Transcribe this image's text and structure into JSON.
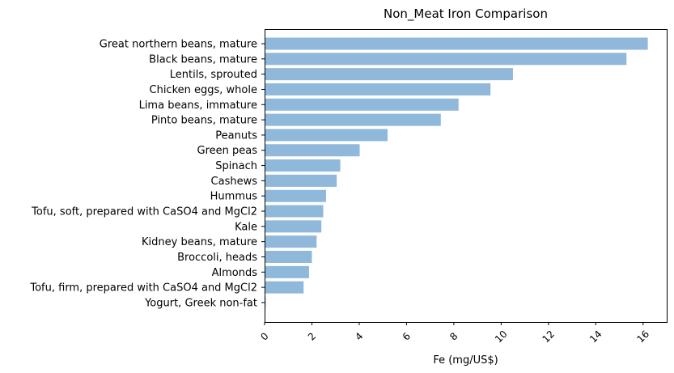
{
  "chart_data": {
    "type": "bar",
    "orientation": "horizontal",
    "title": "Non_Meat Iron Comparison",
    "xlabel": "Fe (mg/US$)",
    "ylabel": "",
    "xlim": [
      0,
      17
    ],
    "xticks": [
      0,
      2,
      4,
      6,
      8,
      10,
      12,
      14,
      16
    ],
    "xtick_labels": [
      "0",
      "2",
      "4",
      "6",
      "8",
      "10",
      "12",
      "14",
      "16"
    ],
    "grid": false,
    "bar_color": "#8fb8da",
    "categories": [
      "Great northern beans, mature",
      "Black beans, mature",
      "Lentils, sprouted",
      "Chicken eggs, whole",
      "Lima beans, immature",
      "Pinto beans, mature",
      "Peanuts",
      "Green peas",
      "Spinach",
      "Cashews",
      "Hummus",
      "Tofu, soft, prepared with CaSO4 and MgCl2",
      "Kale",
      "Kidney beans, mature",
      "Broccoli, heads",
      "Almonds",
      "Tofu, firm, prepared with CaSO4 and MgCl2",
      "Yogurt, Greek non-fat"
    ],
    "values": [
      16.2,
      15.3,
      10.5,
      9.55,
      8.2,
      7.45,
      5.2,
      4.02,
      3.2,
      3.05,
      2.6,
      2.48,
      2.4,
      2.2,
      2.0,
      1.88,
      1.65,
      0.05
    ]
  }
}
